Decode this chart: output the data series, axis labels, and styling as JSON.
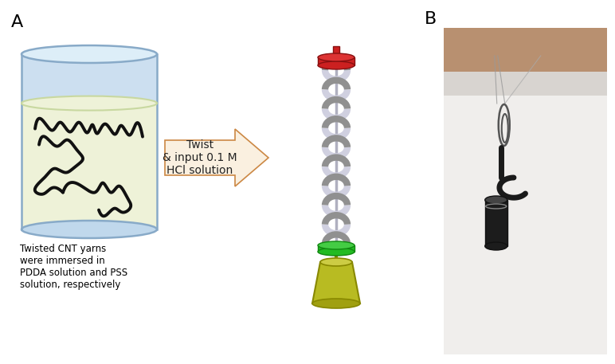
{
  "label_A": "A",
  "label_B": "B",
  "arrow_text": "Twist\n& input 0.1 M\nHCl solution",
  "caption_text": "Twisted CNT yarns\nwere immersed in\nPDDA solution and PSS\nsolution, respectively",
  "bg_color": "#ffffff",
  "label_fontsize": 16,
  "caption_fontsize": 8.5,
  "arrow_fontsize": 10,
  "cylinder_body_color": "#ccdff0",
  "cylinder_edge_color": "#88aac8",
  "liquid_color": "#eef2d8",
  "liquid_edge_color": "#c8d8a0",
  "yarn_color": "#111111",
  "coil_color_light": "#d0d0e0",
  "coil_color_dark": "#909090",
  "top_disc_color": "#cc2020",
  "top_disc_edge": "#881010",
  "bottom_connector_color": "#22bb22",
  "bottom_connector_edge": "#118811",
  "weight_color": "#b8bb22",
  "weight_edge": "#888800",
  "arrow_fill": "#faf0e0",
  "arrow_edge": "#cc8844",
  "photo_bg_top": "#c8a880",
  "photo_bg_mid": "#e8e4e0",
  "photo_bg_bottom": "#f0eeec"
}
